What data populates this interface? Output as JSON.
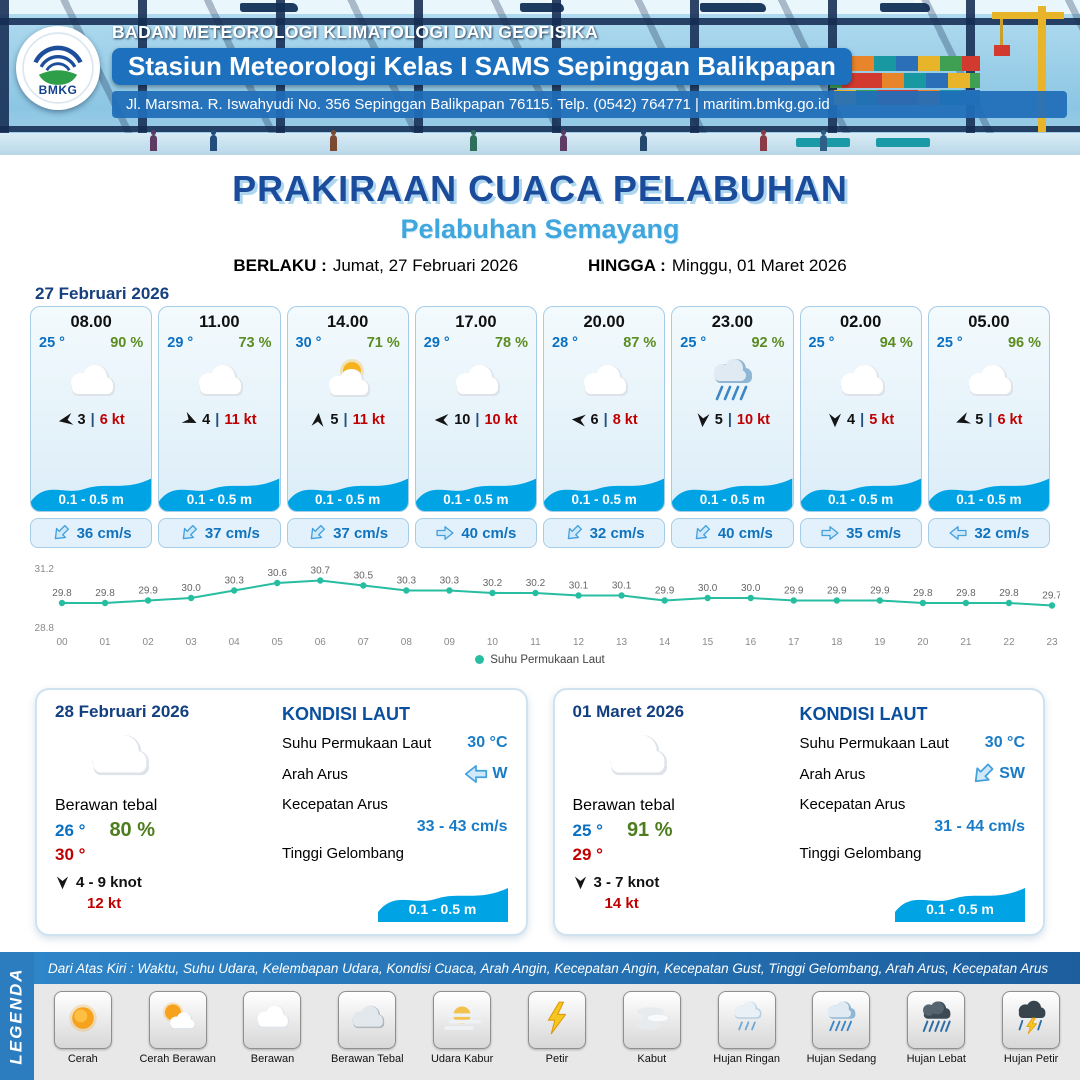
{
  "header": {
    "logo_text": "BMKG",
    "agency": "BADAN METEOROLOGI KLIMATOLOGI DAN GEOFISIKA",
    "station": "Stasiun Meteorologi Kelas I SAMS Sepinggan Balikpapan",
    "address": "Jl. Marsma. R. Iswahyudi No. 356 Sepinggan Balikpapan 76115. Telp. (0542) 764771 | maritim.bmkg.go.id"
  },
  "title": {
    "main": "PRAKIRAAN CUACA PELABUHAN",
    "subtitle": "Pelabuhan Semayang",
    "valid_label": "BERLAKU :",
    "valid_value": "Jumat, 27 Februari 2026",
    "until_label": "HINGGA :",
    "until_value": "Minggu, 01 Maret 2026"
  },
  "forecast_date": "27 Februari 2026",
  "ui": {
    "wind_separator": "|"
  },
  "hourly": [
    {
      "time": "08.00",
      "temp": "25 °",
      "humidity": "90 %",
      "icon": "cloud",
      "wind_deg": 170,
      "wind_val": "3",
      "wind_kt": "6 kt",
      "wave": "0.1 - 0.5 m",
      "current_deg": 135,
      "current": "36 cm/s"
    },
    {
      "time": "11.00",
      "temp": "29 °",
      "humidity": "73 %",
      "icon": "cloud",
      "wind_deg": 25,
      "wind_val": "4",
      "wind_kt": "11 kt",
      "wave": "0.1 - 0.5 m",
      "current_deg": 135,
      "current": "37 cm/s"
    },
    {
      "time": "14.00",
      "temp": "30 °",
      "humidity": "71 %",
      "icon": "partly-sunny",
      "wind_deg": 275,
      "wind_val": "5",
      "wind_kt": "11 kt",
      "wave": "0.1 - 0.5 m",
      "current_deg": 135,
      "current": "37 cm/s"
    },
    {
      "time": "17.00",
      "temp": "29 °",
      "humidity": "78 %",
      "icon": "cloud",
      "wind_deg": 180,
      "wind_val": "10",
      "wind_kt": "10 kt",
      "wave": "0.1 - 0.5 m",
      "current_deg": 0,
      "current": "40 cm/s"
    },
    {
      "time": "20.00",
      "temp": "28 °",
      "humidity": "87 %",
      "icon": "cloud",
      "wind_deg": 185,
      "wind_val": "6",
      "wind_kt": "8 kt",
      "wave": "0.1 - 0.5 m",
      "current_deg": 135,
      "current": "32 cm/s"
    },
    {
      "time": "23.00",
      "temp": "25 °",
      "humidity": "92 %",
      "icon": "rain-medium",
      "wind_deg": 95,
      "wind_val": "5",
      "wind_kt": "10 kt",
      "wave": "0.1 - 0.5 m",
      "current_deg": 135,
      "current": "40 cm/s"
    },
    {
      "time": "02.00",
      "temp": "25 °",
      "humidity": "94 %",
      "icon": "cloud",
      "wind_deg": 90,
      "wind_val": "4",
      "wind_kt": "5 kt",
      "wave": "0.1 - 0.5 m",
      "current_deg": 0,
      "current": "35 cm/s"
    },
    {
      "time": "05.00",
      "temp": "25 °",
      "humidity": "96 %",
      "icon": "cloud",
      "wind_deg": 160,
      "wind_val": "5",
      "wind_kt": "6 kt",
      "wave": "0.1 - 0.5 m",
      "current_deg": 180,
      "current": "32 cm/s"
    }
  ],
  "chart_data": {
    "type": "line",
    "x": [
      "00",
      "01",
      "02",
      "03",
      "04",
      "05",
      "06",
      "07",
      "08",
      "09",
      "10",
      "11",
      "12",
      "13",
      "14",
      "15",
      "16",
      "17",
      "18",
      "19",
      "20",
      "21",
      "22",
      "23"
    ],
    "series": [
      {
        "name": "Suhu Permukaan Laut",
        "values": [
          29.8,
          29.8,
          29.9,
          30.0,
          30.3,
          30.6,
          30.7,
          30.5,
          30.3,
          30.3,
          30.2,
          30.2,
          30.1,
          30.1,
          29.9,
          30.0,
          30.0,
          29.9,
          29.9,
          29.9,
          29.8,
          29.8,
          29.8,
          29.7
        ]
      }
    ],
    "ylim": [
      28.8,
      31.2
    ],
    "line_color": "#27bda1",
    "legend_position": "bottom",
    "grid": false
  },
  "daily": [
    {
      "date": "28 Februari 2026",
      "icon": "cloud",
      "condition": "Berawan tebal",
      "temp_min": "26 °",
      "humidity": "80 %",
      "temp_max": "30 °",
      "wind_deg": 90,
      "wind_range": "4  - 9 knot",
      "gust": "12 kt",
      "sea": {
        "title": "KONDISI LAUT",
        "sst_label": "Suhu Permukaan Laut",
        "sst": "30 °C",
        "current_dir_label": "Arah Arus",
        "current_dir_deg": 180,
        "current_dir": "W",
        "current_speed_label": "Kecepatan Arus",
        "current_speed": "33  - 43 cm/s",
        "wave_label": "Tinggi Gelombang",
        "wave": "0.1 - 0.5 m"
      }
    },
    {
      "date": "01 Maret 2026",
      "icon": "cloud",
      "condition": "Berawan tebal",
      "temp_min": "25 °",
      "humidity": "91 %",
      "temp_max": "29 °",
      "wind_deg": 90,
      "wind_range": "3  - 7 knot",
      "gust": "14 kt",
      "sea": {
        "title": "KONDISI LAUT",
        "sst_label": "Suhu Permukaan Laut",
        "sst": "30 °C",
        "current_dir_label": "Arah Arus",
        "current_dir_deg": 135,
        "current_dir": "SW",
        "current_speed_label": "Kecepatan Arus",
        "current_speed": "31  - 44 cm/s",
        "wave_label": "Tinggi Gelombang",
        "wave": "0.1 - 0.5 m"
      }
    }
  ],
  "legend": {
    "title": "LEGENDA",
    "description": "Dari Atas Kiri : Waktu, Suhu Udara, Kelembapan Udara, Kondisi Cuaca, Arah Angin, Kecepatan Angin, Kecepatan Gust, Tinggi Gelombang, Arah Arus, Kecepatan Arus",
    "items": [
      {
        "label": "Cerah",
        "icon": "sun"
      },
      {
        "label": "Cerah Berawan",
        "icon": "sun-cloud"
      },
      {
        "label": "Berawan",
        "icon": "cloud"
      },
      {
        "label": "Berawan Tebal",
        "icon": "thick-cloud"
      },
      {
        "label": "Udara Kabur",
        "icon": "haze"
      },
      {
        "label": "Petir",
        "icon": "lightning"
      },
      {
        "label": "Kabut",
        "icon": "fog"
      },
      {
        "label": "Hujan Ringan",
        "icon": "rain-light"
      },
      {
        "label": "Hujan Sedang",
        "icon": "rain-medium"
      },
      {
        "label": "Hujan Lebat",
        "icon": "rain-heavy"
      },
      {
        "label": "Hujan Petir",
        "icon": "thunderstorm"
      }
    ]
  },
  "colors": {
    "accent_blue": "#1c70bd",
    "temp_blue": "#0a70c2",
    "humidity_green": "#4e7d1e",
    "alert_red": "#c00000",
    "wave_blue": "#00a3e4",
    "line_teal": "#27bda1"
  }
}
